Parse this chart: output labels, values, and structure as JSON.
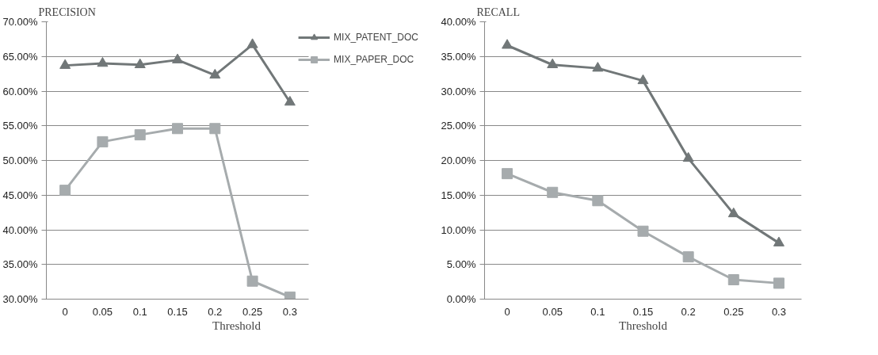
{
  "chart_data": [
    {
      "type": "line",
      "title": "PRECISION",
      "xlabel": "Threshold",
      "categories": [
        "0",
        "0.05",
        "0.1",
        "0.15",
        "0.2",
        "0.25",
        "0.3"
      ],
      "series": [
        {
          "name": "MIX_PATENT_DOC",
          "color": "#717778",
          "marker": "triangle",
          "values": [
            63.7,
            64.0,
            63.8,
            64.5,
            62.3,
            66.7,
            58.4
          ]
        },
        {
          "name": "MIX_PAPER_DOC",
          "color": "#a6abad",
          "marker": "square",
          "values": [
            45.7,
            52.7,
            53.7,
            54.6,
            54.6,
            32.6,
            30.3
          ]
        }
      ],
      "ylim": [
        30,
        70
      ],
      "yticks": [
        {
          "value": 30,
          "label": "30.00%"
        },
        {
          "value": 35,
          "label": "35.00%"
        },
        {
          "value": 40,
          "label": "40.00%"
        },
        {
          "value": 45,
          "label": "45.00%"
        },
        {
          "value": 50,
          "label": "50.00%"
        },
        {
          "value": 55,
          "label": "55.00%"
        },
        {
          "value": 60,
          "label": "60.00%"
        },
        {
          "value": 65,
          "label": "65.00%"
        },
        {
          "value": 70,
          "label": "70.00%"
        }
      ],
      "grid": "y",
      "legend": "right"
    },
    {
      "type": "line",
      "title": "RECALL",
      "xlabel": "Threshold",
      "categories": [
        "0",
        "0.05",
        "0.1",
        "0.15",
        "0.2",
        "0.25",
        "0.3"
      ],
      "series": [
        {
          "color": "#717778",
          "marker": "triangle",
          "values": [
            36.6,
            33.8,
            33.3,
            31.5,
            20.3,
            12.3,
            8.1
          ]
        },
        {
          "color": "#a6abad",
          "marker": "square",
          "values": [
            18.1,
            15.4,
            14.2,
            9.8,
            6.1,
            2.8,
            2.3
          ]
        }
      ],
      "ylim": [
        0,
        40
      ],
      "yticks": [
        {
          "value": 0,
          "label": "0.00%"
        },
        {
          "value": 5,
          "label": "5.00%"
        },
        {
          "value": 10,
          "label": "10.00%"
        },
        {
          "value": 15,
          "label": "15.00%"
        },
        {
          "value": 20,
          "label": "20.00%"
        },
        {
          "value": 25,
          "label": "25.00%"
        },
        {
          "value": 30,
          "label": "30.00%"
        },
        {
          "value": 35,
          "label": "35.00%"
        },
        {
          "value": 40,
          "label": "40.00%"
        }
      ],
      "grid": "y"
    }
  ]
}
